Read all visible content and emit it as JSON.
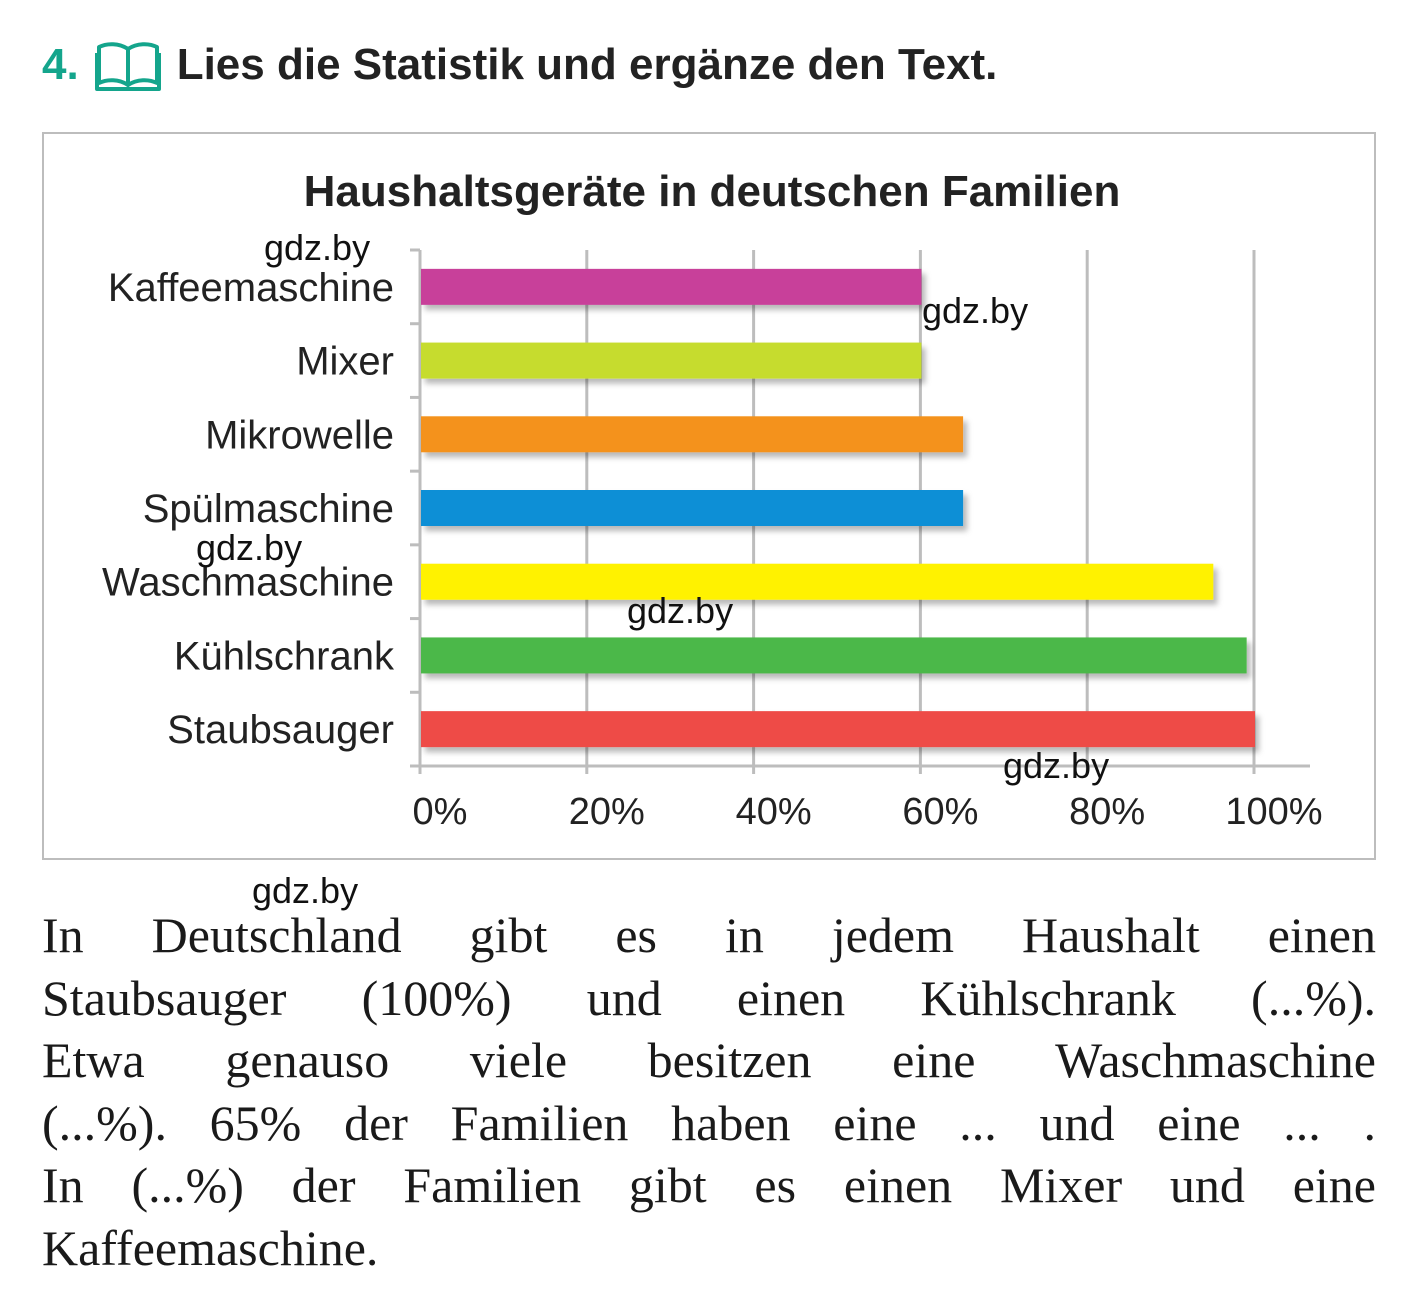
{
  "task": {
    "number": "4.",
    "instruction": "Lies die Statistik und ergänze den Text.",
    "icon": "book-icon",
    "accent_color": "#14a58c"
  },
  "chart_data": {
    "type": "bar",
    "orientation": "horizontal",
    "title": "Haushaltsgeräte in deutschen Familien",
    "xlabel": "",
    "ylabel": "",
    "categories": [
      "Kaffeemaschine",
      "Mixer",
      "Mikrowelle",
      "Spülmaschine",
      "Waschmaschine",
      "Kühlschrank",
      "Staubsauger"
    ],
    "values": [
      60,
      60,
      65,
      65,
      95,
      99,
      100
    ],
    "colors": [
      "#c8409a",
      "#c6dc2e",
      "#f4921e",
      "#0a8fd6",
      "#fff200",
      "#4cb848",
      "#ee4b46"
    ],
    "xlim": [
      0,
      100
    ],
    "x_ticks": [
      "0%",
      "20%",
      "40%",
      "60%",
      "80%",
      "100%"
    ],
    "grid": "vertical",
    "legend": "none"
  },
  "watermarks": {
    "w1": "gdz.by",
    "w2": "gdz.by",
    "w3": "gdz.by",
    "w4": "gdz.by",
    "w5": "gdz.by",
    "w6": "gdz.by"
  },
  "text": {
    "lines": [
      "In Deutschland gibt es in jedem Haushalt einen",
      "Staubsauger (100%) und einen Kühlschrank (...%).",
      "Etwa genauso viele besitzen eine Waschmaschine",
      "(...%). 65% der Familien haben eine ... und eine ... .",
      "In (...%) der Familien gibt es einen Mixer und eine",
      "Kaffeemaschine."
    ]
  }
}
